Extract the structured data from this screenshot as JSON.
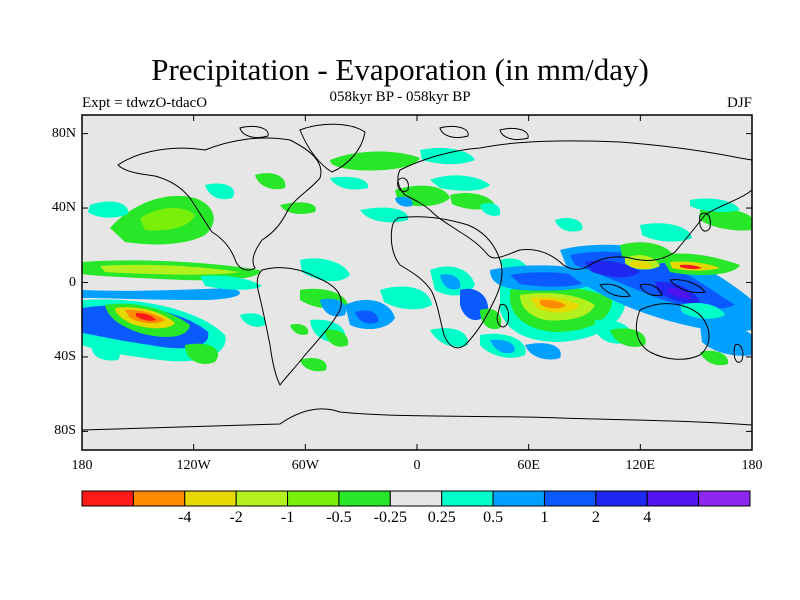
{
  "title": "Precipitation - Evaporation (in mm/day)",
  "subtitle": "058kyr BP - 058kyr BP",
  "left_label": "Expt = tdwzO-tdacO",
  "right_label": "DJF",
  "map": {
    "background_color": "#e6e6e6",
    "coastline_color": "#000000",
    "lat_ticks": [
      {
        "value": 80,
        "label": "80N"
      },
      {
        "value": 40,
        "label": "40N"
      },
      {
        "value": 0,
        "label": "0"
      },
      {
        "value": -40,
        "label": "40S"
      },
      {
        "value": -80,
        "label": "80S"
      }
    ],
    "lon_ticks": [
      {
        "value": -180,
        "label": "180"
      },
      {
        "value": -120,
        "label": "120W"
      },
      {
        "value": -60,
        "label": "60W"
      },
      {
        "value": 0,
        "label": "0"
      },
      {
        "value": 60,
        "label": "60E"
      },
      {
        "value": 120,
        "label": "120E"
      },
      {
        "value": 180,
        "label": "180"
      }
    ],
    "lon_range": [
      -180,
      180
    ],
    "lat_range": [
      -90,
      90
    ]
  },
  "colorbar": {
    "colors": [
      "#ff1a1a",
      "#ff8c00",
      "#e6d800",
      "#b4f01e",
      "#78f00a",
      "#28e628",
      "#e6e6e6",
      "#00ffc8",
      "#00a0ff",
      "#0a5aff",
      "#1e28f0",
      "#5014f0",
      "#8c28f0"
    ],
    "labels": [
      "-4",
      "-2",
      "-1",
      "-0.5",
      "-0.25",
      "0.25",
      "0.5",
      "1",
      "2",
      "4"
    ]
  }
}
